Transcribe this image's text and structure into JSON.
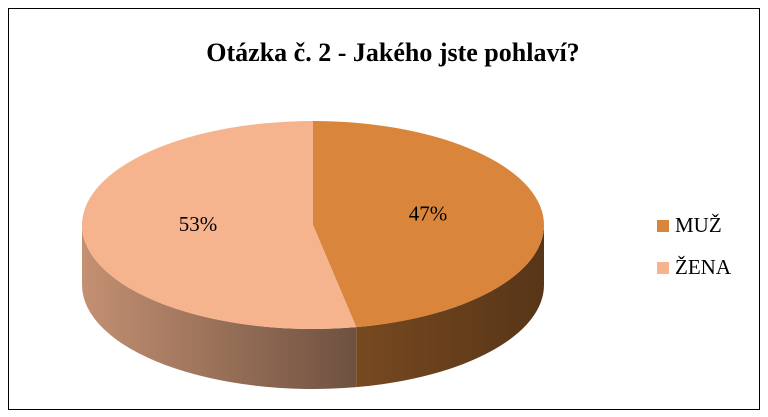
{
  "chart_data": {
    "type": "pie",
    "title": "Otázka č. 2 - Jakého jste pohlaví?",
    "categories": [
      "MUŽ",
      "ŽENA"
    ],
    "values": [
      47,
      53
    ],
    "value_labels": [
      "47%",
      "53%"
    ],
    "colors": [
      "#d9853b",
      "#f5b48e"
    ],
    "legend": "right"
  }
}
